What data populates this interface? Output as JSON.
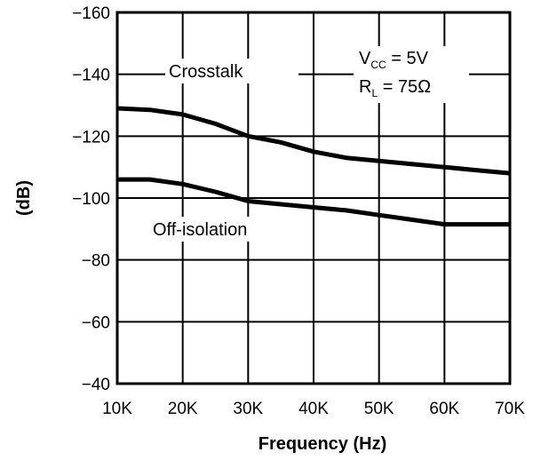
{
  "chart_data": {
    "type": "line",
    "xlabel": "Frequency (Hz)",
    "ylabel": "(dB)",
    "x": [
      10,
      15,
      20,
      25,
      30,
      35,
      40,
      45,
      50,
      55,
      60,
      65,
      70
    ],
    "xticks": [
      10,
      20,
      30,
      40,
      50,
      60,
      70
    ],
    "xtick_labels": [
      "10K",
      "20K",
      "30K",
      "40K",
      "50K",
      "60K",
      "70K"
    ],
    "yticks": [
      -40,
      -60,
      -80,
      -100,
      -120,
      -140,
      -160
    ],
    "ytick_labels": [
      "−40",
      "−60",
      "−80",
      "−100",
      "−120",
      "−140",
      "−160"
    ],
    "xlim": [
      10,
      70
    ],
    "ylim": [
      -40,
      -160
    ],
    "grid": true,
    "series": [
      {
        "name": "Crosstalk",
        "values": [
          -129,
          -128.5,
          -127,
          -124,
          -120,
          -118,
          -115,
          -113,
          -112,
          -111,
          -110,
          -109,
          -108
        ]
      },
      {
        "name": "Off-isolation",
        "values": [
          -106,
          -106,
          -104.5,
          -102,
          -99,
          -98,
          -97,
          -96,
          -94.5,
          -93,
          -91.5,
          -91.5,
          -91.5
        ]
      }
    ],
    "annotations": {
      "vcc_main": "V",
      "vcc_sub": "CC",
      "vcc_value": " = 5V",
      "rl_main": "R",
      "rl_sub": "L",
      "rl_value": " = 75Ω"
    }
  }
}
